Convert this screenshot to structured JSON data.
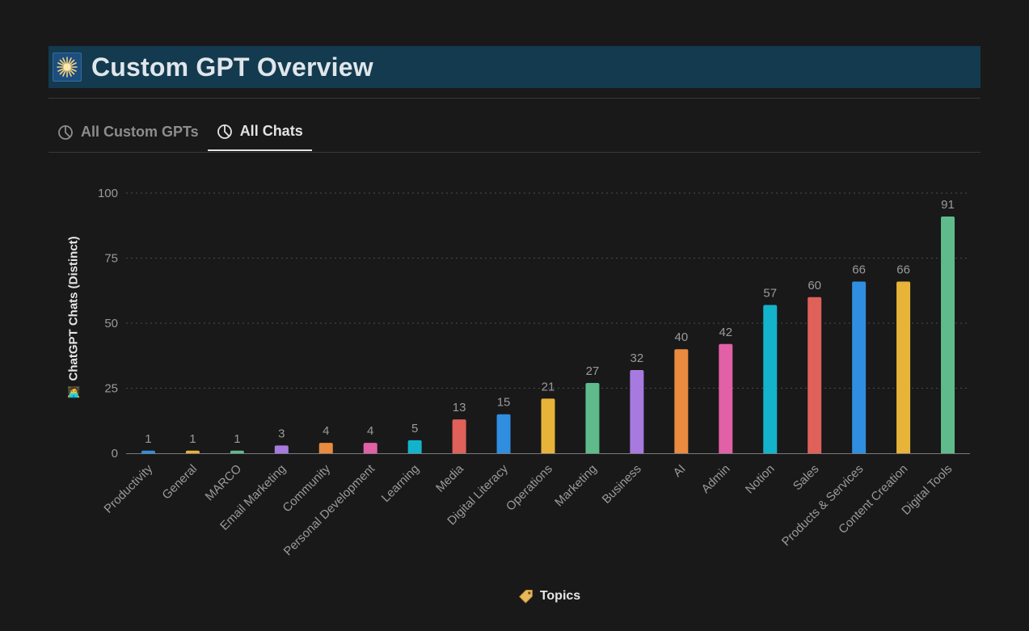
{
  "header": {
    "title": "Custom GPT Overview",
    "icon": "starburst-icon"
  },
  "tabs": [
    {
      "label": "All Custom GPTs",
      "icon": "pie-chart-icon",
      "active": false
    },
    {
      "label": "All Chats",
      "icon": "pie-chart-icon",
      "active": true
    }
  ],
  "chart_data": {
    "type": "bar",
    "xlabel": "Topics",
    "ylabel": "ChatGPT Chats (Distinct)",
    "ylim": [
      0,
      100
    ],
    "yticks": [
      0,
      25,
      50,
      75,
      100
    ],
    "grid": true,
    "categories": [
      "Productivity",
      "General",
      "MARCO",
      "Email Marketing",
      "Community",
      "Personal Development",
      "Learning",
      "Media",
      "Digital Literacy",
      "Operations",
      "Marketing",
      "Business",
      "AI",
      "Admin",
      "Notion",
      "Sales",
      "Products & Services",
      "Content Creation",
      "Digital Tools"
    ],
    "values": [
      1,
      1,
      1,
      3,
      4,
      4,
      5,
      13,
      15,
      21,
      27,
      32,
      40,
      42,
      57,
      60,
      66,
      66,
      91
    ],
    "colors": [
      "#2f8ee0",
      "#e8b339",
      "#5fbb8b",
      "#a77ae0",
      "#ea8b3f",
      "#e160a6",
      "#14b3cc",
      "#e0605a",
      "#2f8ee0",
      "#e8b339",
      "#5fbb8b",
      "#a77ae0",
      "#ea8b3f",
      "#e160a6",
      "#14b3cc",
      "#e0605a",
      "#2f8ee0",
      "#e8b339",
      "#5fbb8b"
    ]
  }
}
